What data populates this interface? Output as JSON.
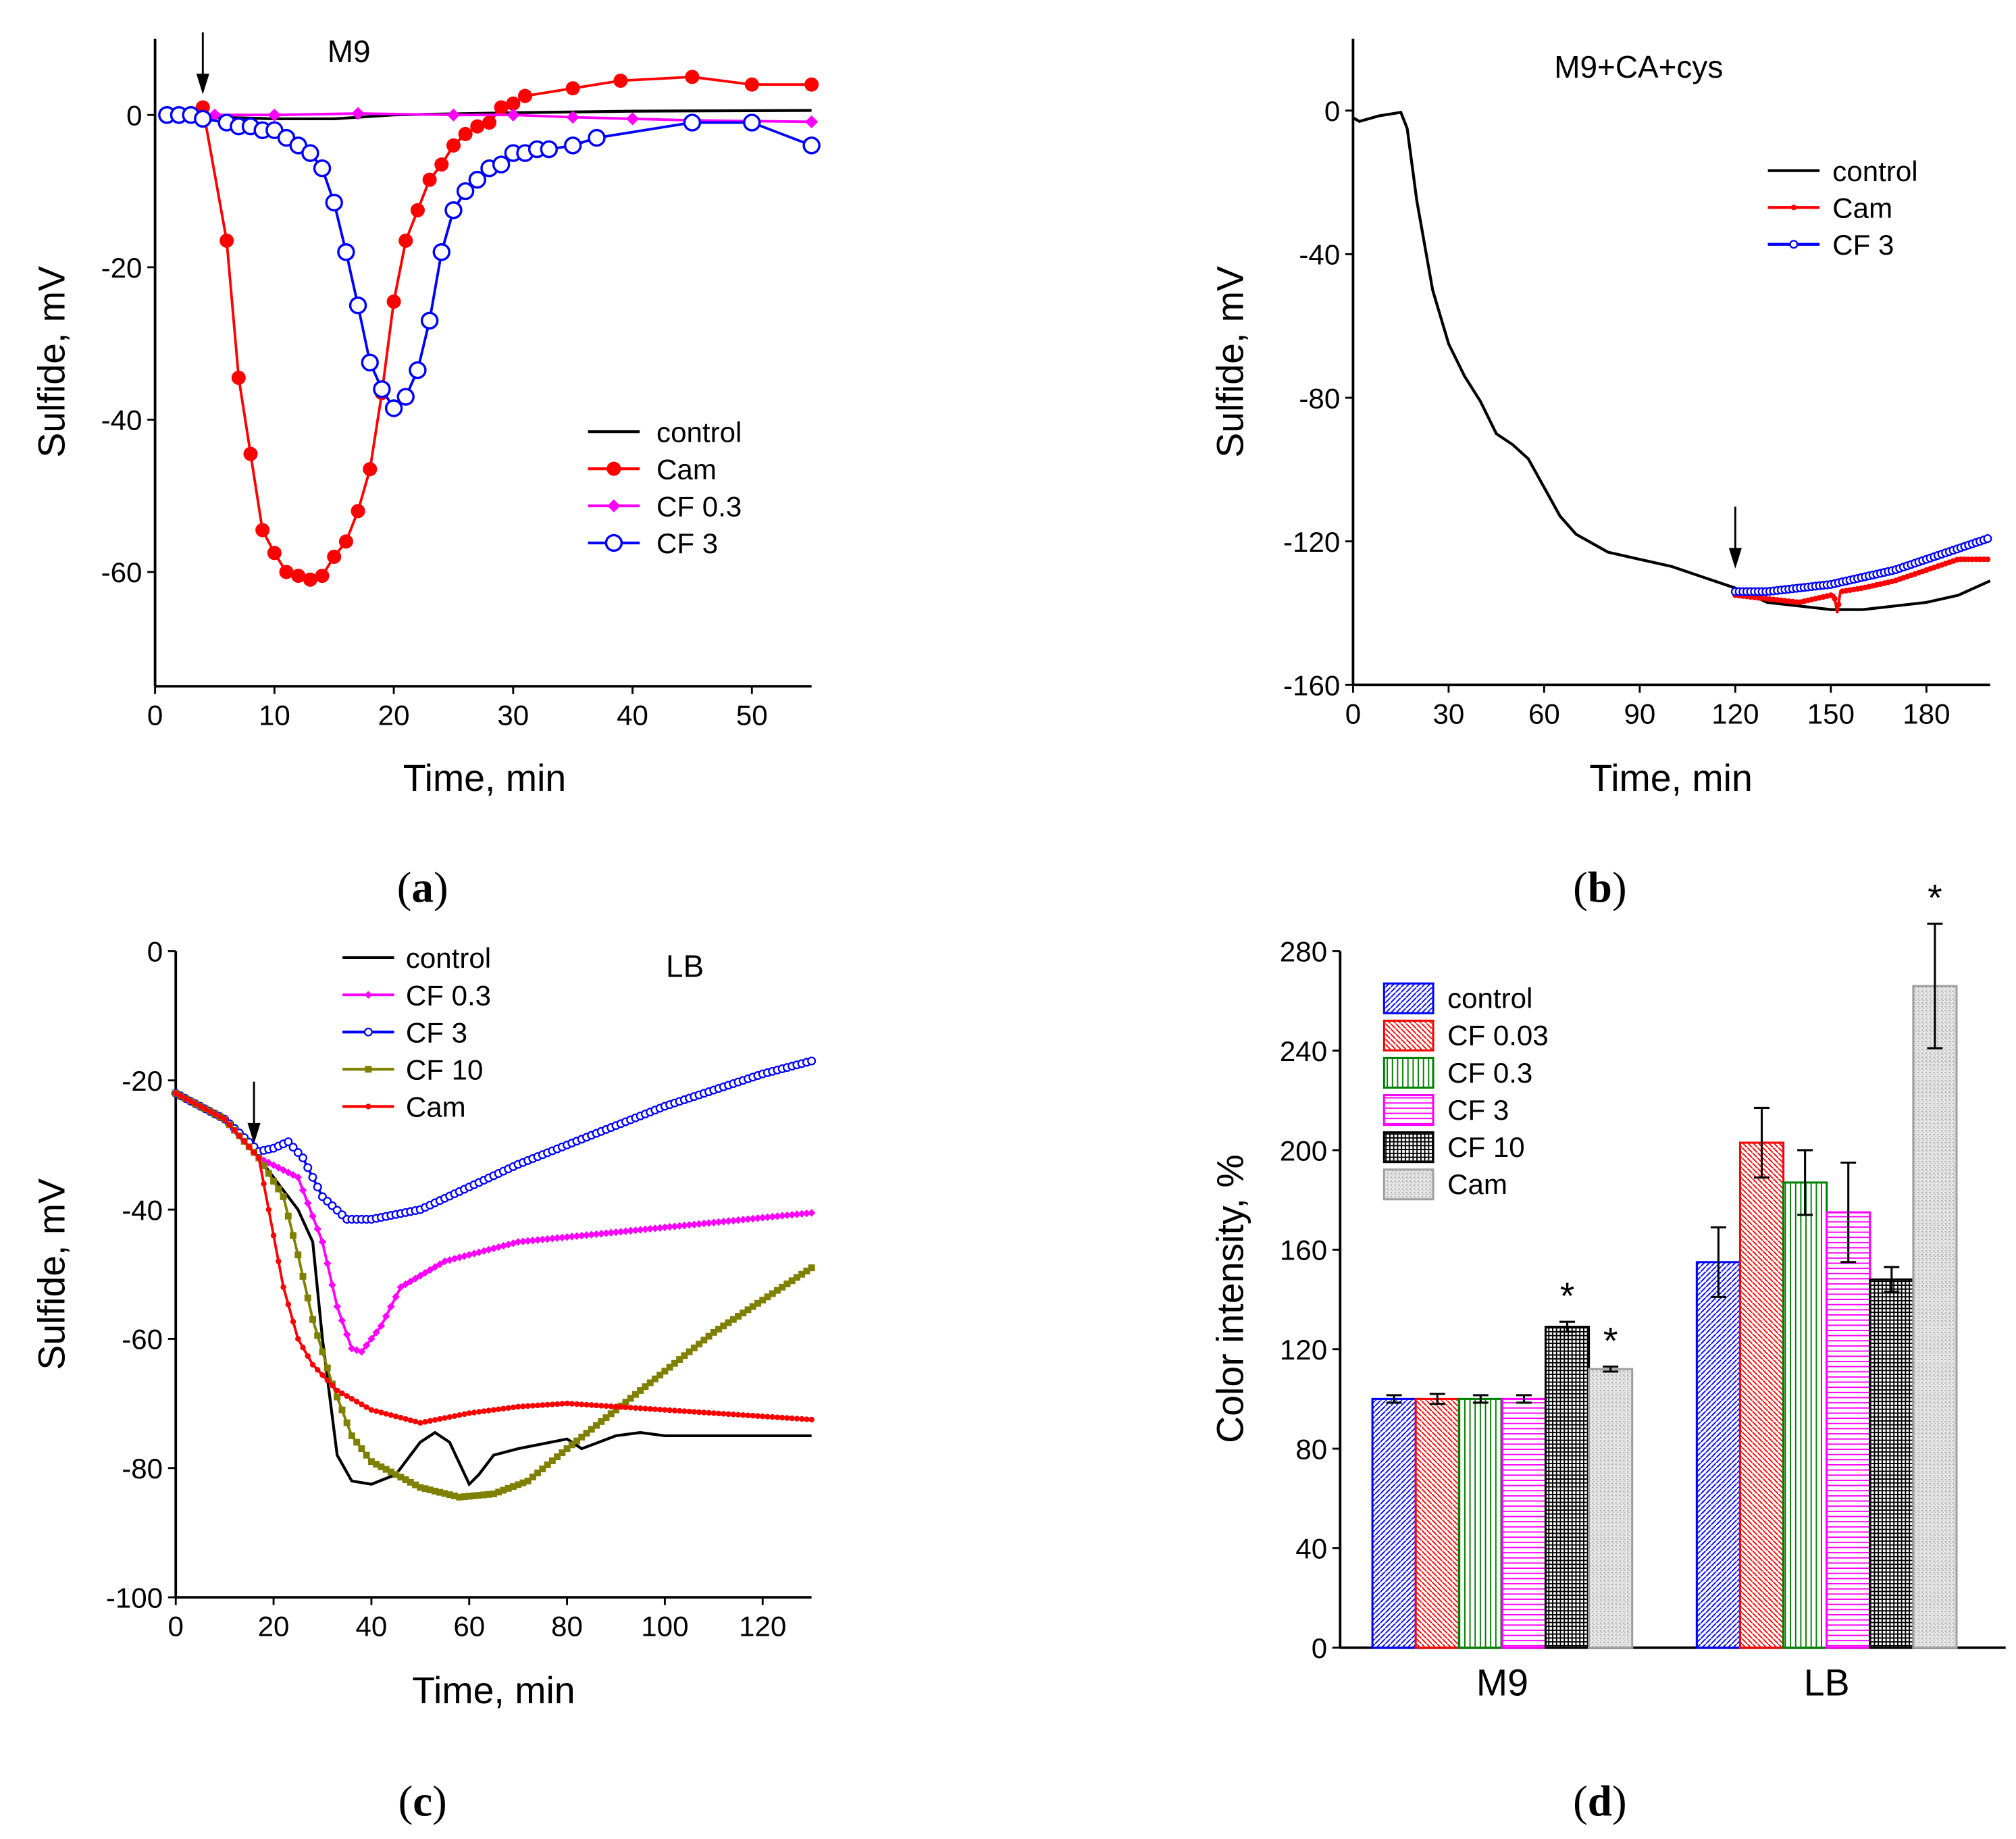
{
  "panel_labels": {
    "a": "a",
    "b": "b",
    "c": "c",
    "d": "d"
  },
  "chart_data": [
    {
      "id": "a",
      "type": "line",
      "title": "M9",
      "xlabel": "Time, min",
      "ylabel": "Sulfide, mV",
      "xlim": [
        0,
        55
      ],
      "ylim": [
        -75,
        10
      ],
      "xticks": [
        0,
        10,
        20,
        30,
        40,
        50
      ],
      "yticks": [
        0,
        -20,
        -40,
        -60
      ],
      "legend_position": "lower-right",
      "arrow_at_x": 4,
      "series": [
        {
          "name": "control",
          "color": "#000000",
          "marker": "none",
          "x": [
            1,
            5,
            10,
            15,
            20,
            30,
            40,
            55
          ],
          "y": [
            0,
            -0.3,
            -0.5,
            -0.5,
            0,
            0.3,
            0.5,
            0.6
          ]
        },
        {
          "name": "Cam",
          "color": "#ff0000",
          "marker": "filled-circle",
          "x": [
            1,
            2,
            3,
            4,
            6,
            7,
            8,
            9,
            10,
            11,
            12,
            13,
            14,
            15,
            16,
            17,
            18,
            19,
            20,
            21,
            22,
            23,
            24,
            25,
            26,
            27,
            28,
            29,
            30,
            31,
            35,
            39,
            45,
            50,
            55
          ],
          "y": [
            0,
            0,
            0,
            1,
            -16.5,
            -34.5,
            -44.5,
            -54.5,
            -57.5,
            -60,
            -60.5,
            -61,
            -60.5,
            -58,
            -56,
            -52,
            -46.5,
            -36.5,
            -24.5,
            -16.5,
            -12.5,
            -8.5,
            -6.5,
            -4,
            -2.5,
            -1.5,
            -1,
            1,
            1.5,
            2.5,
            3.5,
            4.5,
            5,
            4,
            4
          ]
        },
        {
          "name": "CF 0.3",
          "color": "#ff00ff",
          "marker": "diamond",
          "x": [
            1,
            5,
            10,
            17,
            25,
            30,
            35,
            40,
            45,
            50,
            55
          ],
          "y": [
            0,
            0,
            0,
            0.2,
            0,
            0,
            -0.3,
            -0.5,
            -0.7,
            -0.8,
            -0.9
          ]
        },
        {
          "name": "CF 3",
          "color": "#0000ff",
          "marker": "open-circle",
          "x": [
            1,
            2,
            3,
            4,
            6,
            7,
            8,
            9,
            10,
            11,
            12,
            13,
            14,
            15,
            16,
            17,
            18,
            19,
            20,
            21,
            22,
            23,
            24,
            25,
            26,
            27,
            28,
            29,
            30,
            31,
            32,
            33,
            35,
            37,
            45,
            50,
            55
          ],
          "y": [
            0,
            0,
            0,
            -0.5,
            -1,
            -1.5,
            -1.5,
            -2,
            -2,
            -3,
            -4,
            -5,
            -7,
            -11.5,
            -18,
            -25,
            -32.5,
            -36,
            -38.5,
            -37,
            -33.5,
            -27,
            -18,
            -12.5,
            -10,
            -8.5,
            -7,
            -6.5,
            -5,
            -5,
            -4.5,
            -4.5,
            -4,
            -3,
            -1,
            -1,
            -4
          ]
        }
      ]
    },
    {
      "id": "b",
      "type": "line",
      "title": "M9+CA+cys",
      "xlabel": "Time, min",
      "ylabel": "Sulfide, mV",
      "xlim": [
        0,
        200
      ],
      "ylim": [
        -160,
        20
      ],
      "xticks": [
        0,
        30,
        60,
        90,
        120,
        150,
        180
      ],
      "yticks": [
        0,
        -40,
        -80,
        -120,
        -160
      ],
      "legend_position": "upper-right",
      "arrow_at_x": 120,
      "series": [
        {
          "name": "control",
          "color": "#000000",
          "marker": "none",
          "x": [
            0,
            2,
            8,
            15,
            17,
            20,
            25,
            30,
            35,
            40,
            45,
            50,
            55,
            60,
            65,
            70,
            80,
            90,
            100,
            110,
            120,
            130,
            140,
            150,
            160,
            170,
            180,
            190,
            200
          ],
          "y": [
            -2,
            -3,
            -1.5,
            -0.5,
            -5,
            -25,
            -50,
            -65,
            -74,
            -81,
            -90,
            -93,
            -97,
            -105,
            -113,
            -118,
            -123,
            -125,
            -127,
            -130,
            -133,
            -137,
            -138,
            -139,
            -139,
            -138,
            -137,
            -135,
            -131
          ]
        },
        {
          "name": "Cam",
          "color": "#ff0000",
          "marker": "dot",
          "x": [
            120,
            130,
            140,
            150,
            151,
            152,
            153,
            160,
            170,
            180,
            190,
            200
          ],
          "y": [
            -135,
            -136,
            -137,
            -135,
            -135,
            -140,
            -134,
            -133,
            -131,
            -128,
            -125,
            -125
          ]
        },
        {
          "name": "CF 3",
          "color": "#0000ff",
          "marker": "small-open-circle",
          "x": [
            120,
            130,
            140,
            150,
            160,
            170,
            180,
            190,
            200
          ],
          "y": [
            -134,
            -134,
            -133,
            -132,
            -130,
            -128,
            -125,
            -122,
            -119
          ]
        }
      ]
    },
    {
      "id": "c",
      "type": "line",
      "title": "LB",
      "xlabel": "Time, min",
      "ylabel": "Sulfide, mV",
      "xlim": [
        0,
        130
      ],
      "ylim": [
        -100,
        0
      ],
      "xticks": [
        0,
        20,
        40,
        60,
        80,
        100,
        120
      ],
      "yticks": [
        0,
        -20,
        -40,
        -60,
        -80,
        -100
      ],
      "legend_position": "upper-left",
      "arrow_at_x": 16,
      "series": [
        {
          "name": "control",
          "color": "#000000",
          "marker": "none",
          "x": [
            0,
            10,
            17,
            25,
            28,
            30,
            33,
            36,
            40,
            45,
            50,
            53,
            56,
            60,
            62,
            65,
            70,
            80,
            83,
            90,
            95,
            100,
            130
          ],
          "y": [
            -22,
            -26,
            -32,
            -40,
            -45,
            -60,
            -78,
            -82,
            -82.5,
            -81,
            -76,
            -74.5,
            -76,
            -82.5,
            -81,
            -78,
            -77,
            -75.5,
            -77,
            -75,
            -74.5,
            -75,
            -75
          ]
        },
        {
          "name": "CF 0.3",
          "color": "#ff00ff",
          "marker": "small-diamond",
          "x": [
            0,
            10,
            17,
            25,
            30,
            33,
            36,
            38,
            42,
            46,
            55,
            70,
            90,
            110,
            130
          ],
          "y": [
            -22,
            -26,
            -32,
            -35,
            -45,
            -55,
            -61.5,
            -62,
            -58,
            -52,
            -48,
            -45,
            -43.5,
            -42,
            -40.5
          ]
        },
        {
          "name": "CF 3",
          "color": "#0000ff",
          "marker": "small-open-circle",
          "x": [
            0,
            10,
            17,
            20,
            23,
            26,
            30,
            35,
            40,
            50,
            60,
            70,
            80,
            90,
            100,
            110,
            120,
            130
          ],
          "y": [
            -22,
            -26,
            -31,
            -30.5,
            -29.5,
            -32,
            -38,
            -41.5,
            -41.5,
            -40,
            -36.5,
            -33,
            -30,
            -27,
            -24,
            -21.5,
            -19,
            -17
          ]
        },
        {
          "name": "CF 10",
          "color": "#808000",
          "marker": "square",
          "x": [
            0,
            10,
            17,
            22,
            25,
            28,
            32,
            36,
            40,
            50,
            58,
            65,
            72,
            80,
            90,
            100,
            110,
            120,
            130
          ],
          "y": [
            -22,
            -26,
            -32,
            -38,
            -47,
            -57,
            -67,
            -75,
            -79,
            -83,
            -84.5,
            -84,
            -82,
            -77,
            -71,
            -65,
            -59,
            -54,
            -49
          ]
        },
        {
          "name": "Cam",
          "color": "#ff0000",
          "marker": "dot",
          "x": [
            0,
            10,
            17,
            19,
            22,
            25,
            28,
            33,
            40,
            50,
            60,
            70,
            80,
            90,
            100,
            110,
            120,
            130
          ],
          "y": [
            -22,
            -26,
            -32,
            -40,
            -52,
            -60,
            -64,
            -68,
            -71,
            -73,
            -71.5,
            -70.5,
            -70,
            -70.5,
            -71,
            -71.5,
            -72,
            -72.5
          ]
        }
      ]
    },
    {
      "id": "d",
      "type": "bar",
      "xlabel": "",
      "ylabel": "Color intensity, %",
      "ylim": [
        0,
        280
      ],
      "yticks": [
        0,
        40,
        80,
        120,
        160,
        200,
        240,
        280
      ],
      "categories": [
        "M9",
        "LB"
      ],
      "legend_position": "upper-left",
      "significance_mark": "*",
      "series": [
        {
          "name": "control",
          "color": "#0000ff",
          "values": [
            100,
            155
          ],
          "errors": [
            1.5,
            14
          ],
          "significant": [
            false,
            false
          ]
        },
        {
          "name": "CF 0.03",
          "color": "#ff0000",
          "values": [
            100,
            203
          ],
          "errors": [
            2,
            14
          ],
          "significant": [
            false,
            false
          ]
        },
        {
          "name": "CF 0.3",
          "color": "#008000",
          "values": [
            100,
            187
          ],
          "errors": [
            1.5,
            13
          ],
          "significant": [
            false,
            false
          ]
        },
        {
          "name": "CF 3",
          "color": "#ff00ff",
          "values": [
            100,
            175
          ],
          "errors": [
            1.5,
            20
          ],
          "significant": [
            false,
            false
          ]
        },
        {
          "name": "CF 10",
          "color": "#000000",
          "values": [
            129,
            148
          ],
          "errors": [
            2,
            5
          ],
          "significant": [
            true,
            false
          ]
        },
        {
          "name": "Cam",
          "color": "#a0a0a0",
          "values": [
            112,
            266
          ],
          "errors": [
            1,
            25
          ],
          "significant": [
            true,
            true
          ]
        }
      ]
    }
  ]
}
